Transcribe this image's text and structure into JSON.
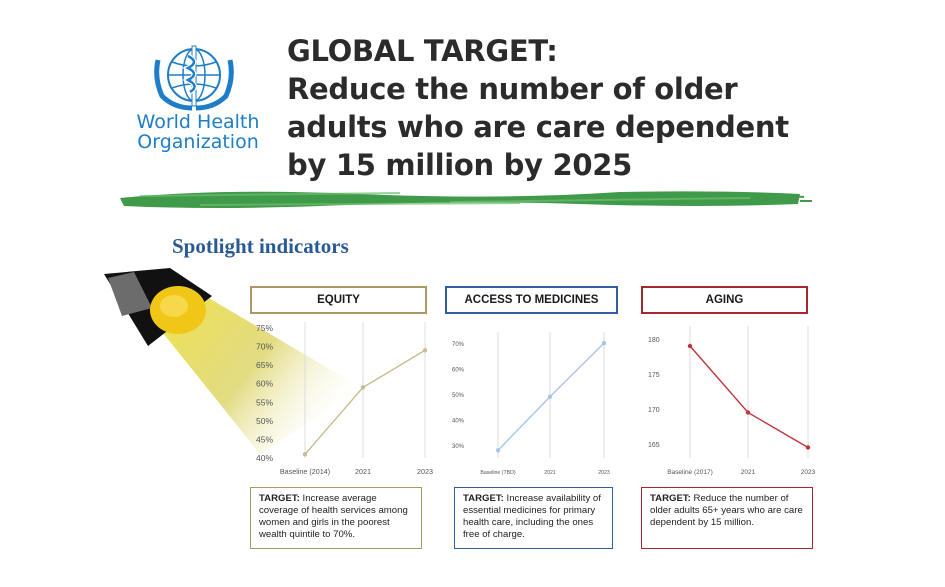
{
  "logo": {
    "line1": "World Health",
    "line2": "Organization",
    "color": "#1e7dc8"
  },
  "headline": {
    "lines": [
      "GLOBAL TARGET:",
      "Reduce the number of older",
      "adults who are care dependent",
      "by 15 million by 2025"
    ]
  },
  "section_title": "Spotlight indicators",
  "panels": [
    {
      "tag": "EQUITY",
      "color": "#a89a62",
      "target_label": "TARGET:",
      "target_text": "Increase average coverage of health services among women and girls in the poorest wealth quintile to 70%."
    },
    {
      "tag": "ACCESS TO MEDICINES",
      "color": "#2f5f9f",
      "target_label": "TARGET:",
      "target_text": "Increase availability of essential medicines for primary health care, including the ones free of charge."
    },
    {
      "tag": "AGING",
      "color": "#a3282d",
      "target_label": "TARGET:",
      "target_text": "Reduce the number of older adults 65+ years who are care dependent by 15 million."
    }
  ],
  "chart_data": [
    {
      "type": "line",
      "categories": [
        "Baseline (2014)",
        "2021",
        "2023"
      ],
      "series": [
        {
          "values": [
            41,
            59,
            69
          ]
        }
      ],
      "ylim": [
        40,
        75
      ],
      "yticks": [
        "40%",
        "45%",
        "50%",
        "55%",
        "60%",
        "65%",
        "70%",
        "75%"
      ],
      "ytick_values": [
        40,
        45,
        50,
        55,
        60,
        65,
        70,
        75
      ],
      "color": "#c7bd8e",
      "grid": "vertical"
    },
    {
      "type": "line",
      "categories": [
        "Baseline (TBD)",
        "2021",
        "2023"
      ],
      "series": [
        {
          "values": [
            28,
            49,
            70
          ]
        }
      ],
      "ylim": [
        25,
        72
      ],
      "yticks": [
        "30%",
        "40%",
        "50%",
        "60%",
        "70%"
      ],
      "ytick_values": [
        30,
        40,
        50,
        60,
        70
      ],
      "color": "#a9c5e6",
      "grid": "vertical"
    },
    {
      "type": "line",
      "categories": [
        "Baseline (2017)",
        "2021",
        "2023"
      ],
      "series": [
        {
          "values": [
            179,
            169.5,
            164.5
          ]
        }
      ],
      "ylim": [
        163,
        181
      ],
      "yticks": [
        "165",
        "170",
        "175",
        "180"
      ],
      "ytick_values": [
        165,
        170,
        175,
        180
      ],
      "color": "#c0343b",
      "grid": "vertical"
    }
  ]
}
